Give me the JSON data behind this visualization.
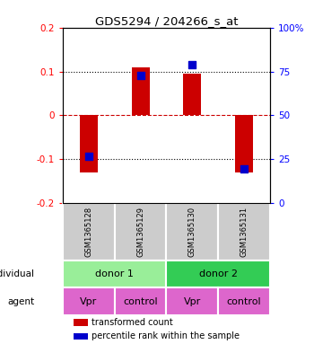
{
  "title": "GDS5294 / 204266_s_at",
  "ylim": [
    -0.2,
    0.2
  ],
  "y_left_ticks": [
    -0.2,
    -0.1,
    0,
    0.1,
    0.2
  ],
  "y_left_labels": [
    "-0.2",
    "-0.1",
    "0",
    "0.1",
    "0.2"
  ],
  "y_right_tick_positions": [
    -0.2,
    -0.1,
    0,
    0.1,
    0.2
  ],
  "y_right_labels": [
    "0",
    "25",
    "50",
    "75",
    "100%"
  ],
  "samples": [
    "GSM1365128",
    "GSM1365129",
    "GSM1365130",
    "GSM1365131"
  ],
  "bar_values": [
    -0.13,
    0.11,
    0.095,
    -0.13
  ],
  "percentile_values": [
    -0.093,
    0.092,
    0.117,
    -0.123
  ],
  "bar_color": "#cc0000",
  "percentile_color": "#0000cc",
  "bar_width": 0.35,
  "percentile_size": 35,
  "hline_zero_color": "#cc0000",
  "hline_dotted_color": "#000000",
  "individual_labels": [
    "donor 1",
    "donor 2"
  ],
  "individual_colors": [
    "#99ee99",
    "#33cc55"
  ],
  "agent_labels": [
    "Vpr",
    "control",
    "Vpr",
    "control"
  ],
  "agent_color": "#dd66cc",
  "sample_box_color": "#cccccc",
  "legend_red_label": "transformed count",
  "legend_blue_label": "percentile rank within the sample",
  "individual_row_label": "individual",
  "agent_row_label": "agent"
}
